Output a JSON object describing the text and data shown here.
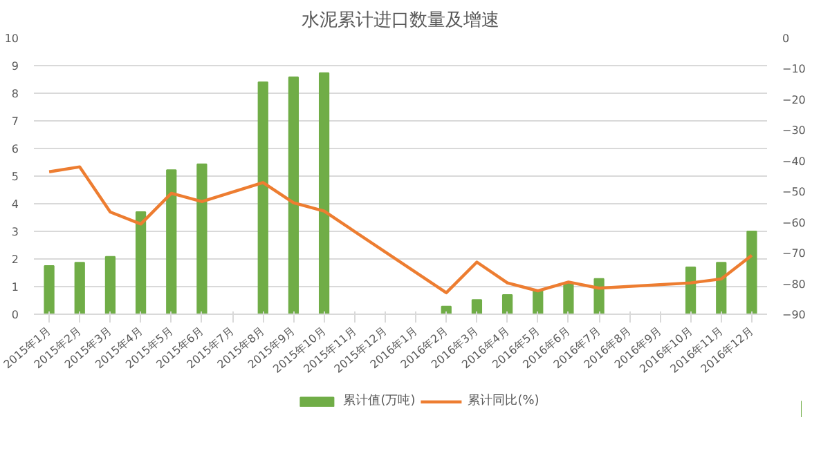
{
  "chart_data": {
    "type": "bar",
    "title": "水泥累计进口数量及增速",
    "categories": [
      "2015年1月",
      "2015年2月",
      "2015年3月",
      "2015年4月",
      "2015年5月",
      "2015年6月",
      "2015年7月",
      "2015年8月",
      "2015年9月",
      "2015年10月",
      "2015年11月",
      "2015年12月",
      "2016年1月",
      "2016年2月",
      "2016年3月",
      "2016年4月",
      "2016年5月",
      "2016年6月",
      "2016年7月",
      "2016年8月",
      "2016年9月",
      "2016年10月",
      "2016年11月",
      "2016年12月"
    ],
    "series": [
      {
        "name": "累计值(万吨)",
        "color": "#70ad47",
        "values": [
          1.75,
          1.87,
          2.08,
          3.7,
          5.22,
          5.43,
          null,
          8.4,
          8.58,
          8.73,
          null,
          null,
          null,
          0.28,
          0.52,
          0.7,
          0.87,
          1.13,
          1.28,
          null,
          null,
          1.7,
          1.87,
          3.0
        ]
      },
      {
        "name": "累计同比(%)",
        "type": "line",
        "axis": "y2",
        "color": "#ed7d31",
        "values": [
          -43.6,
          -42,
          -56.7,
          -60.6,
          -50.6,
          -53.3,
          null,
          -47.1,
          -53.7,
          -56.4,
          null,
          null,
          null,
          -83,
          -73,
          -79.8,
          -82.4,
          -79.5,
          -81.5,
          null,
          null,
          -79.8,
          -78.5,
          -70.8
        ]
      }
    ],
    "ylim": [
      0,
      10
    ],
    "yticks": [
      0,
      1,
      2,
      3,
      4,
      5,
      6,
      7,
      8,
      9,
      10
    ],
    "y2lim": [
      -90,
      0
    ],
    "y2ticks": [
      -90,
      -80,
      -70,
      -60,
      -50,
      -40,
      -30,
      -20,
      -10,
      0
    ],
    "grid": "y",
    "legend": "bottom"
  }
}
